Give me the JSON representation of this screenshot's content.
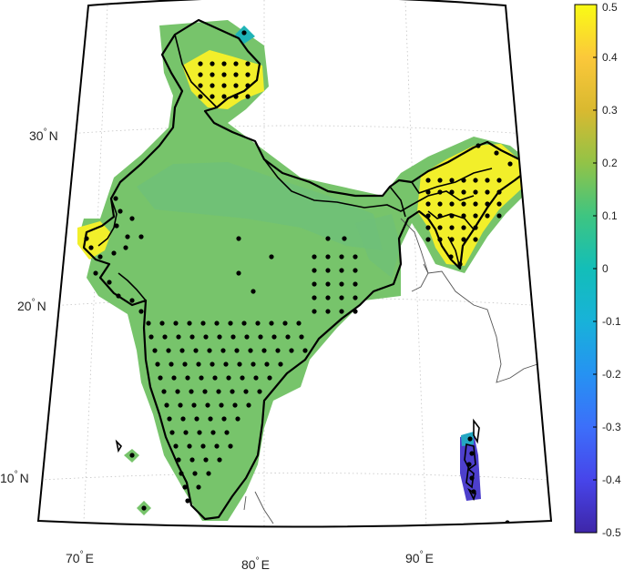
{
  "map": {
    "latitude_labels": [
      {
        "deg": "30",
        "sym": "°",
        "hem": "N"
      },
      {
        "deg": "20",
        "sym": "°",
        "hem": "N"
      },
      {
        "deg": "10",
        "sym": "°",
        "hem": "N"
      }
    ],
    "longitude_labels": [
      {
        "deg": "70",
        "sym": "°",
        "hem": "E"
      },
      {
        "deg": "80",
        "sym": "°",
        "hem": "E"
      },
      {
        "deg": "90",
        "sym": "°",
        "hem": "E"
      }
    ],
    "colors": {
      "land_green": "#7cc36a",
      "land_green_dark": "#6cbf6f",
      "high_yellow": "#f7f224",
      "low_blue": "#4a3fcf",
      "border": "#000000",
      "coast": "#555555",
      "grid": "#bbbbbb"
    }
  },
  "colorbar": {
    "ticks": [
      "0.5",
      "0.4",
      "0.3",
      "0.2",
      "0.1",
      "0",
      "-0.1",
      "-0.2",
      "-0.3",
      "-0.4",
      "-0.5"
    ],
    "min": -0.5,
    "max": 0.5,
    "colormap": "parula"
  }
}
